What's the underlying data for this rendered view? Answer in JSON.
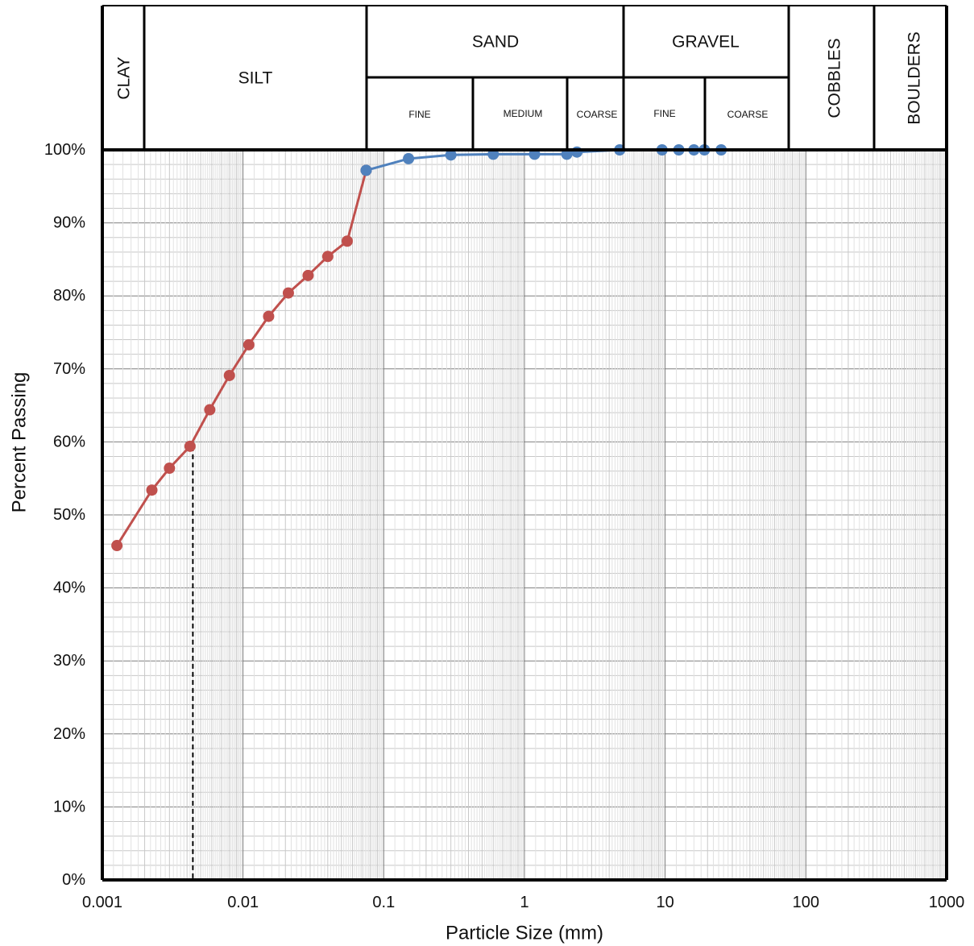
{
  "soil_classes": {
    "clay": "CLAY",
    "silt": "SILT",
    "sand": "SAND",
    "gravel": "GRAVEL",
    "cobbles": "COBBLES",
    "boulders": "BOULDERS",
    "sand_fine": "FINE",
    "sand_medium": "MEDIUM",
    "sand_coarse": "COARSE",
    "gravel_fine": "FINE",
    "gravel_coarse": "COARSE"
  },
  "chart_data": {
    "type": "scatter",
    "title": "",
    "xlabel": "Particle Size (mm)",
    "ylabel": "Percent Passing",
    "x_scale": "log",
    "xlim": [
      0.001,
      1000
    ],
    "ylim": [
      0,
      100
    ],
    "x_tick_values": [
      0.001,
      0.01,
      0.1,
      1,
      10,
      100,
      1000
    ],
    "x_tick_labels": [
      "0.001",
      "0.01",
      "0.1",
      "1",
      "10",
      "100",
      "1000"
    ],
    "y_tick_values": [
      0,
      10,
      20,
      30,
      40,
      50,
      60,
      70,
      80,
      90,
      100
    ],
    "y_tick_labels": [
      "0%",
      "10%",
      "20%",
      "30%",
      "40%",
      "50%",
      "60%",
      "70%",
      "80%",
      "90%",
      "100%"
    ],
    "grid": true,
    "series": [
      {
        "color": "#c0504d",
        "x": [
          0.00127,
          0.00225,
          0.003,
          0.0042,
          0.0058,
          0.008,
          0.011,
          0.0152,
          0.021,
          0.029,
          0.04,
          0.055,
          0.075
        ],
        "y": [
          45.8,
          53.4,
          56.4,
          59.4,
          64.4,
          69.1,
          73.3,
          77.2,
          80.4,
          82.8,
          85.4,
          87.5,
          97.2
        ]
      },
      {
        "color": "#4f81bd",
        "x": [
          0.075,
          0.15,
          0.3,
          0.6,
          1.18,
          2.0,
          2.36,
          4.75,
          9.5,
          12.5,
          16,
          19,
          25
        ],
        "y": [
          97.2,
          98.8,
          99.3,
          99.4,
          99.4,
          99.4,
          99.7,
          100,
          100,
          100,
          100,
          100,
          100
        ]
      }
    ],
    "reference_line": {
      "x": 0.0044,
      "y": 59.4,
      "style": "dashed",
      "color": "#000000"
    }
  }
}
